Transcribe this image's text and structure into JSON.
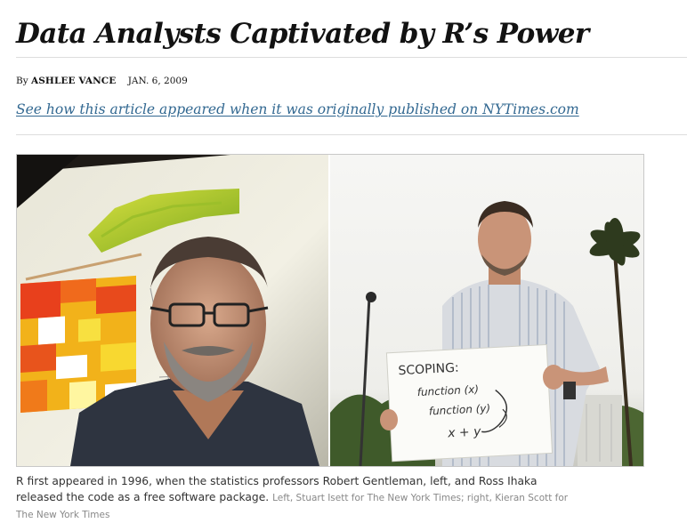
{
  "article": {
    "headline": "Data Analysts Captivated by R’s Power",
    "byline_prefix": "By",
    "author": "ASHLEE VANCE",
    "date": "JAN. 6, 2009",
    "original_link_text": "See how this article appeared when it was originally published on NYTimes.com"
  },
  "photo": {
    "sign_text_title": "SCOPING:",
    "sign_text_line1": "function (x)",
    "sign_text_line2": "function (y)",
    "sign_text_line3": "x + y"
  },
  "caption": {
    "text": "R first appeared in 1996, when the statistics professors Robert Gentleman, left, and Ross Ihaka released the code as a free software package.",
    "credit": "Left, Stuart Isett for The New York Times; right, Kieran Scott for The New York Times"
  },
  "colors": {
    "link": "#326891",
    "rule": "#dddddd",
    "text": "#121212"
  }
}
